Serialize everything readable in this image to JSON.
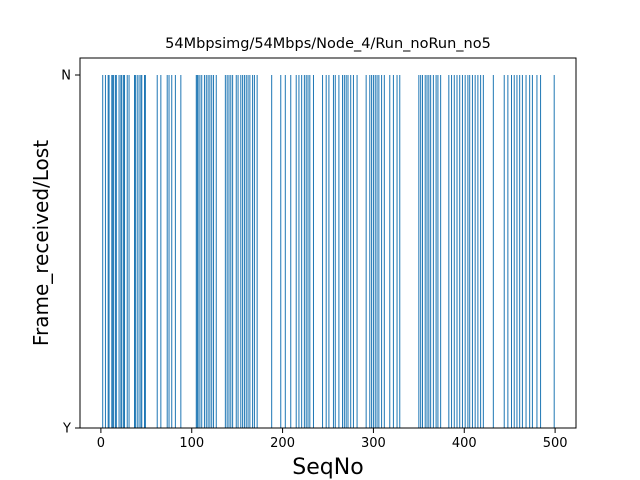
{
  "chart_data": {
    "type": "bar",
    "title": "54Mbpsimg/54Mbps/Node_4/Run_noRun_no5",
    "xlabel": "SeqNo",
    "ylabel": "Frame_received/Lost",
    "xlim": [
      -23,
      523
    ],
    "x_ticks": [
      0,
      100,
      200,
      300,
      400,
      500
    ],
    "y_categories": [
      "Y",
      "N"
    ],
    "bar_color": "#1f77b4",
    "lost_seqno": [
      2,
      5,
      8,
      9,
      12,
      13,
      14,
      16,
      17,
      20,
      22,
      23,
      25,
      26,
      29,
      31,
      37,
      38,
      40,
      42,
      44,
      45,
      48,
      49,
      62,
      66,
      73,
      75,
      78,
      82,
      88,
      105,
      106,
      107,
      109,
      111,
      114,
      116,
      118,
      120,
      122,
      124,
      127,
      137,
      139,
      141,
      143,
      145,
      149,
      151,
      154,
      156,
      158,
      160,
      162,
      164,
      167,
      169,
      172,
      188,
      198,
      203,
      209,
      215,
      218,
      221,
      224,
      226,
      228,
      230,
      234,
      244,
      248,
      251,
      256,
      258,
      262,
      266,
      268,
      270,
      272,
      275,
      278,
      282,
      292,
      296,
      298,
      300,
      302,
      304,
      306,
      309,
      312,
      318,
      322,
      326,
      329,
      350,
      352,
      354,
      357,
      359,
      361,
      363,
      366,
      369,
      371,
      374,
      383,
      386,
      389,
      392,
      395,
      398,
      401,
      404,
      406,
      409,
      412,
      415,
      418,
      421,
      432,
      444,
      448,
      452,
      455,
      458,
      461,
      464,
      468,
      472,
      475,
      480,
      484,
      499
    ]
  }
}
